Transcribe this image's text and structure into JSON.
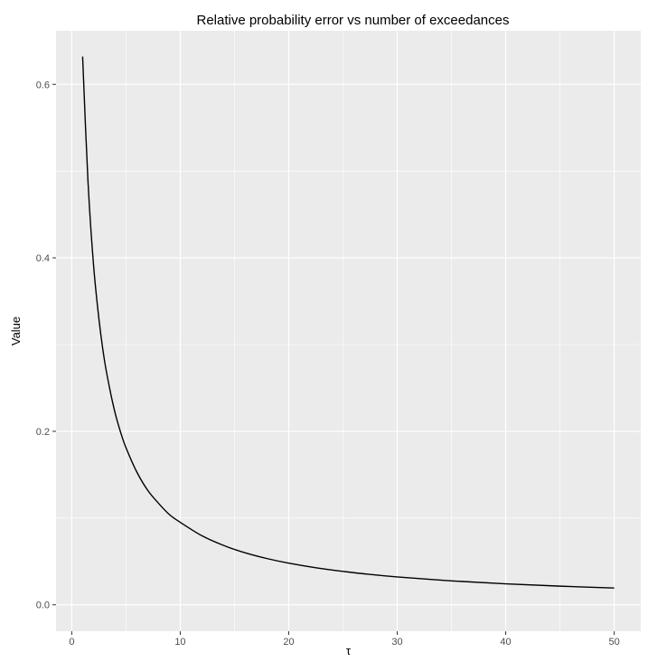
{
  "chart_data": {
    "type": "line",
    "title": "Relative probability error vs number of exceedances",
    "xlabel": "τ",
    "ylabel": "Value",
    "xlim": [
      -1.45,
      52.45
    ],
    "ylim": [
      -0.0305,
      0.6618
    ],
    "x_ticks": [
      0,
      10,
      20,
      30,
      40,
      50
    ],
    "x_tick_labels": [
      "0",
      "10",
      "20",
      "30",
      "40",
      "50"
    ],
    "y_ticks": [
      0.0,
      0.2,
      0.4,
      0.6
    ],
    "y_tick_labels": [
      "0.0",
      "0.2",
      "0.4",
      "0.6"
    ],
    "grid": true,
    "legend": "none",
    "colors": {
      "panel": "#ebebeb",
      "grid": "#ffffff",
      "line": "#000000"
    },
    "series": [
      {
        "x": [
          1,
          1.5,
          2,
          2.5,
          3,
          3.5,
          4,
          4.5,
          5,
          6,
          7,
          8,
          9,
          10,
          12,
          14,
          16,
          18,
          20,
          22.5,
          25,
          27.5,
          30,
          35,
          40,
          45,
          50
        ],
        "y": [
          0.632,
          0.487,
          0.393,
          0.33,
          0.283,
          0.249,
          0.221,
          0.199,
          0.181,
          0.153,
          0.132,
          0.117,
          0.104,
          0.0951,
          0.0796,
          0.0684,
          0.0599,
          0.0533,
          0.048,
          0.0427,
          0.0385,
          0.035,
          0.0321,
          0.0276,
          0.0242,
          0.0215,
          0.0194
        ]
      }
    ]
  }
}
